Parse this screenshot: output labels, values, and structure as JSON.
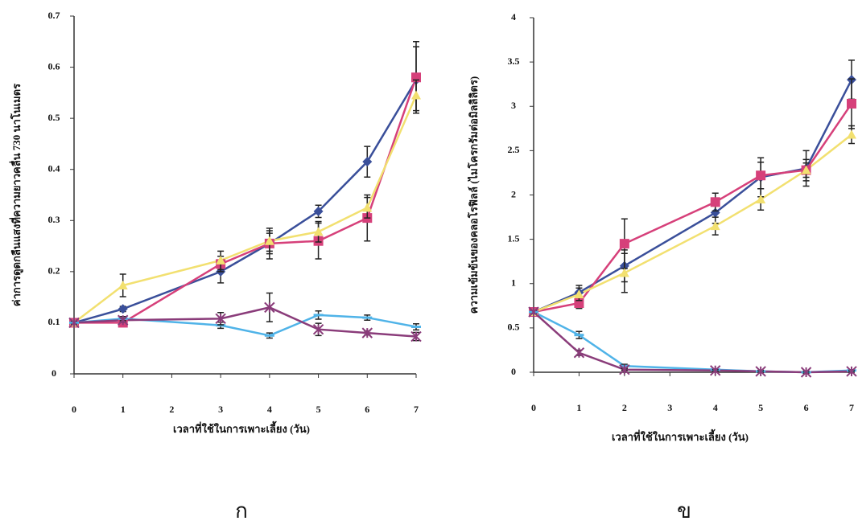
{
  "chart_data": [
    {
      "type": "line",
      "caption": "ก",
      "x_label": "เวลาที่ใช้ในการเพาะเลี้ยง (วัน)",
      "y_label": "ค่าการดูดกลืนแสงที่ความยาวคลื่น 730 นาโนเมตร",
      "x": [
        0,
        1,
        3,
        4,
        5,
        6,
        7
      ],
      "xlim": [
        0,
        7
      ],
      "xticks": [
        0,
        1,
        2,
        3,
        4,
        5,
        6,
        7
      ],
      "ylim": [
        0,
        0.7
      ],
      "yticks": [
        0,
        0.1,
        0.2,
        0.3,
        0.4,
        0.5,
        0.6,
        0.7
      ],
      "series": [
        {
          "color": "#3a4f9a",
          "marker": "diamond",
          "values": [
            0.1,
            0.127,
            0.2,
            0.255,
            0.318,
            0.415,
            0.575
          ],
          "errors": [
            0.003,
            0.005,
            0.022,
            0.02,
            0.012,
            0.03,
            0.065
          ]
        },
        {
          "color": "#d6407a",
          "marker": "square",
          "values": [
            0.1,
            0.1,
            0.215,
            0.255,
            0.26,
            0.305,
            0.58
          ],
          "errors": [
            0.003,
            0.004,
            0.015,
            0.03,
            0.035,
            0.045,
            0.07
          ]
        },
        {
          "color": "#f2e070",
          "marker": "triangle",
          "values": [
            0.1,
            0.173,
            0.222,
            0.26,
            0.278,
            0.325,
            0.545
          ],
          "errors": [
            0.003,
            0.022,
            0.018,
            0.02,
            0.02,
            0.02,
            0.03
          ]
        },
        {
          "color": "#4fb3e8",
          "marker": "dash",
          "values": [
            0.1,
            0.108,
            0.095,
            0.075,
            0.115,
            0.11,
            0.092
          ],
          "errors": [
            0.003,
            0.004,
            0.006,
            0.005,
            0.008,
            0.005,
            0.006
          ]
        },
        {
          "color": "#8a3c7a",
          "marker": "cross",
          "values": [
            0.1,
            0.105,
            0.108,
            0.13,
            0.087,
            0.08,
            0.073
          ],
          "errors": [
            0.003,
            0.004,
            0.012,
            0.028,
            0.012,
            0.004,
            0.008
          ]
        }
      ]
    },
    {
      "type": "line",
      "caption": "ข",
      "x_label": "เวลาที่ใช้ในการเพาะเลี้ยง (วัน)",
      "y_label": "ความเข้มข้นของคลอโรฟิลล์ (ไมโครกรัมต่อมิลลิลิตร)",
      "x": [
        0,
        1,
        2,
        4,
        5,
        6,
        7
      ],
      "xlim": [
        0,
        7
      ],
      "xticks": [
        0,
        1,
        2,
        3,
        4,
        5,
        6,
        7
      ],
      "ylim": [
        0,
        4
      ],
      "yticks": [
        0,
        0.5,
        1,
        1.5,
        2,
        2.5,
        3,
        3.5,
        4
      ],
      "series": [
        {
          "color": "#3a4f9a",
          "marker": "diamond",
          "values": [
            0.68,
            0.9,
            1.2,
            1.8,
            2.2,
            2.3,
            3.3
          ],
          "errors": [
            0.02,
            0.08,
            0.18,
            0.12,
            0.22,
            0.2,
            0.22
          ]
        },
        {
          "color": "#d6407a",
          "marker": "square",
          "values": [
            0.68,
            0.78,
            1.45,
            1.92,
            2.22,
            2.28,
            3.03
          ],
          "errors": [
            0.02,
            0.06,
            0.28,
            0.1,
            0.15,
            0.12,
            0.28
          ]
        },
        {
          "color": "#f2e070",
          "marker": "triangle",
          "values": [
            0.68,
            0.88,
            1.12,
            1.65,
            1.95,
            2.28,
            2.68
          ],
          "errors": [
            0.02,
            0.07,
            0.22,
            0.1,
            0.12,
            0.08,
            0.1
          ]
        },
        {
          "color": "#4fb3e8",
          "marker": "dash",
          "values": [
            0.68,
            0.42,
            0.07,
            0.03,
            0.01,
            0.0,
            0.02
          ],
          "errors": [
            0.02,
            0.04,
            0.02,
            0.01,
            0.01,
            0.01,
            0.01
          ]
        },
        {
          "color": "#8a3c7a",
          "marker": "cross",
          "values": [
            0.68,
            0.22,
            0.03,
            0.02,
            0.01,
            0.0,
            0.01
          ],
          "errors": [
            0.02,
            0.03,
            0.01,
            0.01,
            0.01,
            0.01,
            0.01
          ]
        }
      ]
    }
  ]
}
